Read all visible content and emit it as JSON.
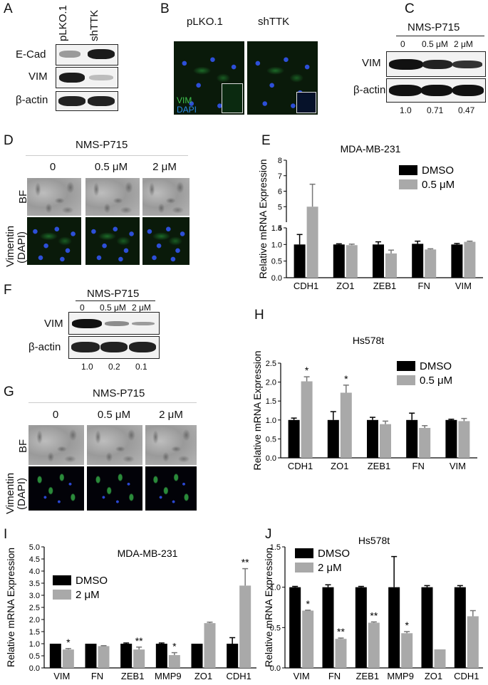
{
  "panels": {
    "A": {
      "letter": "A",
      "columns": [
        "pLKO.1",
        "shTTK"
      ],
      "rows": [
        "E-Cad",
        "VIM",
        "β-actin"
      ]
    },
    "B": {
      "letter": "B",
      "columns": [
        "pLKO.1",
        "shTTK"
      ],
      "stain_vim": "VIM",
      "stain_dapi": "DAPI"
    },
    "C": {
      "letter": "C",
      "treatment": "NMS-P715",
      "doses": [
        "0",
        "0.5 μM",
        "2 μM"
      ],
      "rows": [
        "VIM",
        "β-actin"
      ],
      "quant": [
        "1.0",
        "0.71",
        "0.47"
      ]
    },
    "D": {
      "letter": "D",
      "treatment": "NMS-P715",
      "doses": [
        "0",
        "0.5 μM",
        "2 μM"
      ],
      "row_bf": "BF",
      "row_vim_1": "Vimentin",
      "row_vim_2": "(DAPI)"
    },
    "E": {
      "letter": "E"
    },
    "F": {
      "letter": "F",
      "treatment": "NMS-P715",
      "doses": [
        "0",
        "0.5 μM",
        "2 μM"
      ],
      "rows": [
        "VIM",
        "β-actin"
      ],
      "quant": [
        "1.0",
        "0.2",
        "0.1"
      ]
    },
    "G": {
      "letter": "G",
      "treatment": "NMS-P715",
      "doses": [
        "0",
        "0.5 μM",
        "2 μM"
      ],
      "row_bf": "BF",
      "row_vim_1": "Vimentin",
      "row_vim_2": "(DAPI)"
    },
    "H": {
      "letter": "H"
    },
    "I": {
      "letter": "I"
    },
    "J": {
      "letter": "J"
    }
  },
  "colors": {
    "control": "#000000",
    "treated": "#a9a9a9"
  },
  "chart_data": [
    {
      "id": "E",
      "type": "bar",
      "title": "MDA-MB-231",
      "ylabel": "Relative mRNA Expression",
      "categories": [
        "CDH1",
        "ZO1",
        "ZEB1",
        "FN",
        "VIM"
      ],
      "series": [
        {
          "name": "DMSO",
          "values": [
            1.0,
            1.0,
            1.0,
            1.02,
            1.0
          ],
          "errors": [
            0.3,
            0.02,
            0.08,
            0.08,
            0.03
          ]
        },
        {
          "name": "0.5 μM",
          "values": [
            5.0,
            0.98,
            0.73,
            0.85,
            1.08
          ],
          "errors": [
            1.45,
            0.03,
            0.1,
            0.02,
            0.02
          ]
        }
      ],
      "ylim": [
        0,
        8
      ],
      "broken_axis": [
        1.5,
        4
      ],
      "yticks_lower": [
        "0.0",
        "0.5",
        "1.0",
        "1.5"
      ],
      "yticks_upper": [
        "4",
        "5",
        "6",
        "7",
        "8"
      ],
      "annotations": []
    },
    {
      "id": "H",
      "type": "bar",
      "title": "Hs578t",
      "ylabel": "Relative mRNA Expression",
      "categories": [
        "CDH1",
        "ZO1",
        "ZEB1",
        "FN",
        "VIM"
      ],
      "series": [
        {
          "name": "DMSO",
          "values": [
            1.0,
            1.0,
            1.0,
            1.0,
            1.0
          ],
          "errors": [
            0.05,
            0.22,
            0.07,
            0.18,
            0.02
          ]
        },
        {
          "name": "0.5 μM",
          "values": [
            2.02,
            1.72,
            0.89,
            0.79,
            0.97
          ],
          "errors": [
            0.12,
            0.2,
            0.08,
            0.06,
            0.07
          ]
        }
      ],
      "ylim": [
        0,
        2.5
      ],
      "yticks": [
        "0.0",
        "0.5",
        "1.0",
        "1.5",
        "2.0",
        "2.5"
      ],
      "annotations": [
        {
          "category": "CDH1",
          "series": 1,
          "text": "*"
        },
        {
          "category": "ZO1",
          "series": 1,
          "text": "*"
        }
      ]
    },
    {
      "id": "I",
      "type": "bar",
      "title": "MDA-MB-231",
      "ylabel": "Relative mRNA Expression",
      "categories": [
        "VIM",
        "FN",
        "ZEB1",
        "MMP9",
        "ZO1",
        "CDH1"
      ],
      "series": [
        {
          "name": "DMSO",
          "values": [
            1.0,
            1.0,
            1.0,
            1.0,
            1.0,
            1.0
          ],
          "errors": [
            0.0,
            0.0,
            0.03,
            0.03,
            0.0,
            0.25
          ]
        },
        {
          "name": "2 μM",
          "values": [
            0.76,
            0.9,
            0.76,
            0.53,
            1.85,
            3.4
          ],
          "errors": [
            0.04,
            0.02,
            0.1,
            0.1,
            0.04,
            0.7
          ]
        }
      ],
      "ylim": [
        0,
        5.0
      ],
      "yticks": [
        "0.0",
        "0.5",
        "1.0",
        "1.5",
        "2.0",
        "2.5",
        "3.0",
        "3.5",
        "4.0",
        "4.5",
        "5.0"
      ],
      "annotations": [
        {
          "category": "VIM",
          "series": 1,
          "text": "*"
        },
        {
          "category": "ZEB1",
          "series": 1,
          "text": "**"
        },
        {
          "category": "MMP9",
          "series": 1,
          "text": "*"
        },
        {
          "category": "CDH1",
          "series": 1,
          "text": "**"
        }
      ]
    },
    {
      "id": "J",
      "type": "bar",
      "title": "Hs578t",
      "ylabel": "Relative mRNA Expression",
      "categories": [
        "VIM",
        "FN",
        "ZEB1",
        "MMP9",
        "ZO1",
        "CDH1"
      ],
      "series": [
        {
          "name": "DMSO",
          "values": [
            1.0,
            1.0,
            1.0,
            1.0,
            1.0,
            1.0
          ],
          "errors": [
            0.01,
            0.03,
            0.01,
            0.38,
            0.02,
            0.02
          ]
        },
        {
          "name": "2 μM",
          "values": [
            0.71,
            0.36,
            0.56,
            0.43,
            0.23,
            0.64
          ],
          "errors": [
            0.005,
            0.01,
            0.01,
            0.02,
            0.0,
            0.07
          ]
        }
      ],
      "ylim": [
        0,
        1.5
      ],
      "yticks": [
        "0.0",
        "0.5",
        "1.0",
        "1.5"
      ],
      "annotations": [
        {
          "category": "VIM",
          "series": 1,
          "text": "*"
        },
        {
          "category": "FN",
          "series": 1,
          "text": "**"
        },
        {
          "category": "ZEB1",
          "series": 1,
          "text": "**"
        },
        {
          "category": "MMP9",
          "series": 1,
          "text": "*"
        }
      ]
    }
  ]
}
